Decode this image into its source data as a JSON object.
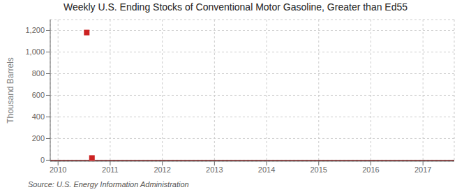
{
  "chart_data": {
    "type": "line",
    "title": "Weekly U.S. Ending Stocks of Conventional Motor Gasoline, Greater than Ed55",
    "ylabel": "Thousand Barrels",
    "annotations": [
      "Source: U.S. Energy Information Administration"
    ],
    "xlim": [
      2009.85,
      2017.6
    ],
    "ylim": [
      -10,
      1300
    ],
    "xticks": [
      2010,
      2011,
      2012,
      2013,
      2014,
      2015,
      2016,
      2017
    ],
    "yticks": [
      0,
      200,
      400,
      600,
      800,
      {
        "value": 1000,
        "label": "1,000"
      },
      {
        "value": 1200,
        "label": "1,200"
      }
    ],
    "grid": true,
    "series": [
      {
        "type": "line",
        "color": "#6b0000",
        "x": [
          2009.85,
          2017.6
        ],
        "values": [
          0,
          0
        ]
      },
      {
        "type": "scatter",
        "color": "#cc2222",
        "marker": "square",
        "x": [
          2010.55,
          2010.65
        ],
        "values": [
          1180,
          20
        ]
      }
    ]
  }
}
